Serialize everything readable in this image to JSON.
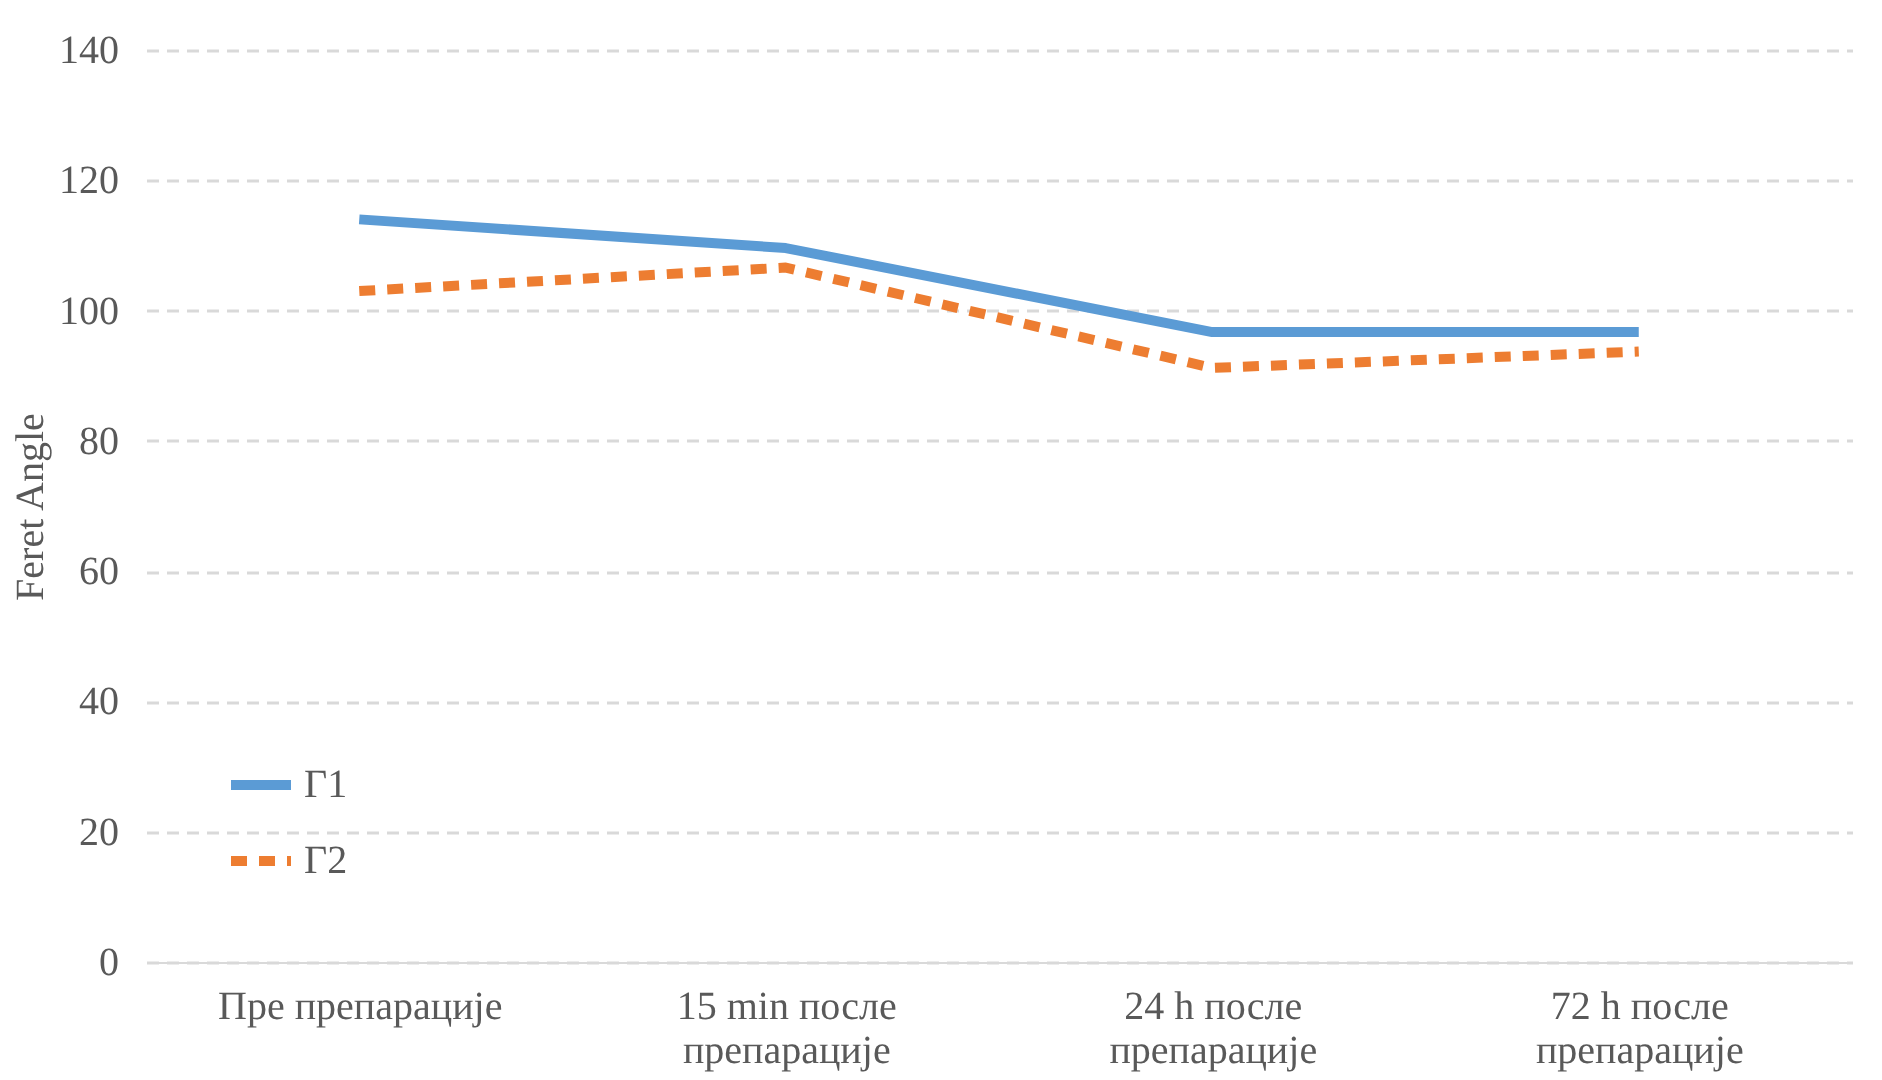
{
  "chart_data": {
    "type": "line",
    "ylabel": "Feret Angle",
    "categories": [
      "Пре препарације",
      "15 min после препарације",
      "24 h после препарације",
      "72 h после препарације"
    ],
    "series": [
      {
        "name": "Γ1",
        "color": "#5b9bd5",
        "line_style": "solid",
        "values": [
          114,
          109.6,
          96.7,
          96.7
        ]
      },
      {
        "name": "Γ2",
        "color": "#ed7d31",
        "line_style": "dashed",
        "values": [
          103,
          106.6,
          91.2,
          93.7
        ]
      }
    ],
    "ylim": [
      0,
      140
    ],
    "yticks": [
      0,
      20,
      40,
      60,
      80,
      100,
      120,
      140
    ],
    "grid": "y",
    "legend": "bottom left",
    "marker": "none"
  }
}
